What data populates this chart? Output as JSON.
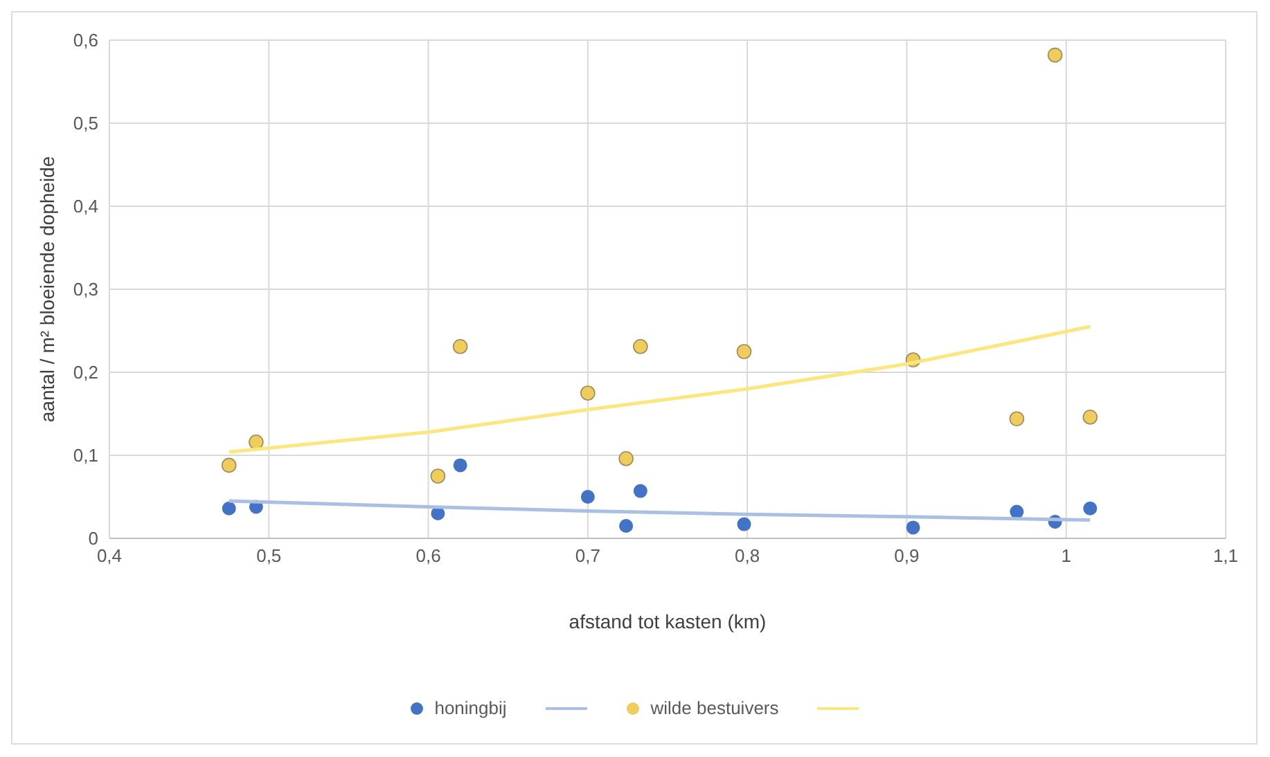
{
  "chart_data": {
    "type": "scatter",
    "xlabel": "afstand tot kasten (km)",
    "ylabel": "aantal / m² bloeiende dopheide",
    "xlim": [
      0.4,
      1.1
    ],
    "xticks": [
      {
        "value": 0.4,
        "label": "0,4"
      },
      {
        "value": 0.5,
        "label": "0,5"
      },
      {
        "value": 0.6,
        "label": "0,6"
      },
      {
        "value": 0.7,
        "label": "0,7"
      },
      {
        "value": 0.8,
        "label": "0,8"
      },
      {
        "value": 0.9,
        "label": "0,9"
      },
      1,
      {
        "value": 1.1,
        "label": "1,1"
      }
    ],
    "ylim": [
      0,
      0.6
    ],
    "yticks": [
      0,
      {
        "value": 0.1,
        "label": "0,1"
      },
      {
        "value": 0.2,
        "label": "0,2"
      },
      {
        "value": 0.3,
        "label": "0,3"
      },
      {
        "value": 0.4,
        "label": "0,4"
      },
      {
        "value": 0.5,
        "label": "0,5"
      },
      {
        "value": 0.6,
        "label": "0,6"
      }
    ],
    "grid": true,
    "legend": "bottom",
    "marker": "circle",
    "series": [
      {
        "name": "honingbij",
        "color": "#4472c4",
        "x": [
          0.475,
          0.492,
          0.606,
          0.62,
          0.7,
          0.724,
          0.733,
          0.798,
          0.904,
          0.969,
          0.993,
          1.015
        ],
        "values": [
          0.036,
          0.038,
          0.03,
          0.088,
          0.05,
          0.015,
          0.057,
          0.017,
          0.013,
          0.032,
          0.02,
          0.036
        ]
      },
      {
        "type": "line",
        "marker": "none",
        "color": "#a9c0e4",
        "x": [
          0.475,
          0.6,
          0.7,
          0.8,
          0.9,
          1.015
        ],
        "values": [
          0.045,
          0.038,
          0.033,
          0.029,
          0.026,
          0.022
        ]
      },
      {
        "name": "wilde bestuivers",
        "color": "#f0cc5c",
        "x": [
          0.475,
          0.492,
          0.606,
          0.62,
          0.7,
          0.724,
          0.733,
          0.798,
          0.904,
          0.969,
          0.993,
          1.015
        ],
        "values": [
          0.088,
          0.116,
          0.075,
          0.231,
          0.175,
          0.096,
          0.231,
          0.225,
          0.215,
          0.144,
          0.582,
          0.146
        ]
      },
      {
        "type": "line",
        "marker": "none",
        "color": "#fbe67f",
        "x": [
          0.475,
          0.6,
          0.7,
          0.8,
          0.9,
          1.015
        ],
        "values": [
          0.104,
          0.128,
          0.155,
          0.18,
          0.21,
          0.255
        ]
      }
    ]
  }
}
